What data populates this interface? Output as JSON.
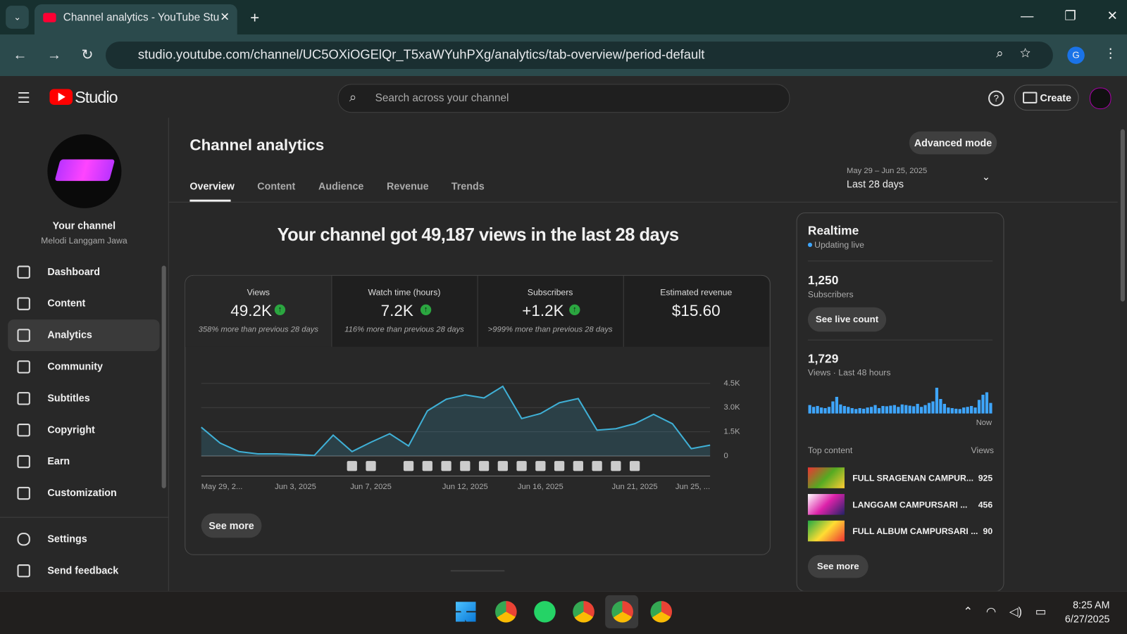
{
  "browser": {
    "tab_title": "Channel analytics - YouTube Stu",
    "url": "studio.youtube.com/channel/UC5OXiOGElQr_T5xaWYuhPXg/analytics/tab-overview/period-default",
    "profile_initial": "G"
  },
  "header": {
    "logo": "Studio",
    "search_placeholder": "Search across your channel",
    "create": "Create"
  },
  "sidebar": {
    "channel_label": "Your channel",
    "channel_name": "Melodi Langgam Jawa",
    "nav": [
      "Dashboard",
      "Content",
      "Analytics",
      "Community",
      "Subtitles",
      "Copyright",
      "Earn",
      "Customization"
    ],
    "bottom": [
      "Settings",
      "Send feedback"
    ]
  },
  "page": {
    "title": "Channel analytics",
    "advanced": "Advanced mode",
    "tabs": [
      "Overview",
      "Content",
      "Audience",
      "Revenue",
      "Trends"
    ],
    "date_range": "May 29 – Jun 25, 2025",
    "period": "Last 28 days",
    "headline": "Your channel got 49,187 views in the last 28 days",
    "see_more": "See more"
  },
  "metrics": [
    {
      "label": "Views",
      "value": "49.2K",
      "note": "358% more than previous 28 days"
    },
    {
      "label": "Watch time (hours)",
      "value": "7.2K",
      "note": "116% more than previous 28 days"
    },
    {
      "label": "Subscribers",
      "value": "+1.2K",
      "note": ">999% more than previous 28 days"
    },
    {
      "label": "Estimated revenue",
      "value": "$15.60"
    }
  ],
  "chart_data": [
    {
      "type": "line",
      "categories": [
        "May 29, 2...",
        null,
        null,
        null,
        null,
        "Jun 3, 2025",
        null,
        null,
        null,
        "Jun 7, 2025",
        null,
        null,
        null,
        null,
        "Jun 12, 2025",
        null,
        null,
        null,
        "Jun 16, 2025",
        null,
        null,
        null,
        null,
        "Jun 21, 2025",
        null,
        null,
        null,
        "Jun 25, ..."
      ],
      "values": [
        1780,
        800,
        270,
        130,
        130,
        90,
        30,
        1290,
        270,
        850,
        1380,
        620,
        2800,
        3520,
        3790,
        3600,
        4320,
        2320,
        2630,
        3300,
        3560,
        1600,
        1690,
        2000,
        2580,
        2000,
        450,
        670
      ],
      "color": "#3fb0d6",
      "ylim": [
        0,
        4500
      ],
      "yticks": [
        0,
        {
          "value": 1500,
          "label": "1.5K"
        },
        {
          "value": 3000,
          "label": "3.0K"
        },
        {
          "value": 4500,
          "label": "4.5K"
        }
      ],
      "grid": true
    },
    {
      "type": "bar",
      "values": [
        28,
        22,
        25,
        20,
        18,
        22,
        40,
        55,
        30,
        25,
        22,
        18,
        15,
        18,
        16,
        20,
        22,
        28,
        18,
        25,
        24,
        26,
        28,
        22,
        30,
        28,
        26,
        24,
        32,
        22,
        28,
        35,
        40,
        85,
        48,
        32,
        20,
        18,
        16,
        15,
        20,
        22,
        25,
        20,
        45,
        62,
        70,
        35
      ],
      "color": "#3ea6ff"
    }
  ],
  "realtime": {
    "title": "Realtime",
    "status": "Updating live",
    "subscribers": "1,250",
    "subscribers_label": "Subscribers",
    "see_live": "See live count",
    "views": "1,729",
    "views_label": "Views · Last 48 hours",
    "now": "Now",
    "top_content": "Top content",
    "views_col": "Views",
    "items": [
      {
        "title": "FULL SRAGENAN CAMPUR...",
        "views": "925"
      },
      {
        "title": "LANGGAM CAMPURSARI ...",
        "views": "456"
      },
      {
        "title": "FULL ALBUM CAMPURSARI ...",
        "views": "90"
      }
    ],
    "see_more": "See more"
  },
  "taskbar": {
    "time": "8:25 AM",
    "date": "6/27/2025"
  }
}
